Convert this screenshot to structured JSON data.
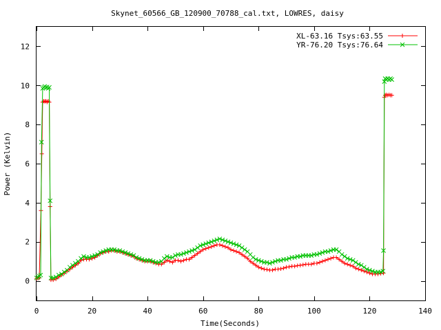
{
  "chart_data": {
    "type": "line",
    "title": "Skynet_60566_GB_120900_70788_cal.txt, LOWRES, daisy",
    "xlabel": "Time(Seconds)",
    "ylabel": "Power (Kelvin)",
    "xlim": [
      0,
      140
    ],
    "ylim": [
      -1,
      13
    ],
    "xticks": [
      0,
      20,
      40,
      60,
      80,
      100,
      120,
      140
    ],
    "yticks": [
      0,
      2,
      4,
      6,
      8,
      10,
      12
    ],
    "grid": false,
    "legend_position": "top-right",
    "series": [
      {
        "name": "XL-63.16 Tsys:63.55",
        "color": "#ff0000",
        "marker": "plus",
        "points": [
          [
            0,
            0.12
          ],
          [
            0.5,
            0.14
          ],
          [
            1,
            0.15
          ],
          [
            1.6,
            3.6
          ],
          [
            1.9,
            6.5
          ],
          [
            2.2,
            9.15
          ],
          [
            2.6,
            9.2
          ],
          [
            3,
            9.18
          ],
          [
            3.4,
            9.2
          ],
          [
            3.8,
            9.15
          ],
          [
            4.2,
            9.2
          ],
          [
            4.6,
            9.15
          ],
          [
            4.9,
            3.8
          ],
          [
            5.2,
            0.05
          ],
          [
            6,
            0.05
          ],
          [
            7,
            0.1
          ],
          [
            8,
            0.2
          ],
          [
            9,
            0.3
          ],
          [
            10,
            0.4
          ],
          [
            11,
            0.5
          ],
          [
            12,
            0.6
          ],
          [
            13,
            0.7
          ],
          [
            14,
            0.8
          ],
          [
            15,
            0.9
          ],
          [
            16,
            1.05
          ],
          [
            17,
            1.1
          ],
          [
            18,
            1.1
          ],
          [
            19,
            1.1
          ],
          [
            20,
            1.15
          ],
          [
            21,
            1.2
          ],
          [
            22,
            1.3
          ],
          [
            23,
            1.4
          ],
          [
            24,
            1.45
          ],
          [
            25,
            1.5
          ],
          [
            26,
            1.5
          ],
          [
            27,
            1.55
          ],
          [
            28,
            1.55
          ],
          [
            29,
            1.5
          ],
          [
            30,
            1.5
          ],
          [
            31,
            1.45
          ],
          [
            32,
            1.4
          ],
          [
            33,
            1.35
          ],
          [
            34,
            1.3
          ],
          [
            35,
            1.25
          ],
          [
            36,
            1.15
          ],
          [
            37,
            1.1
          ],
          [
            38,
            1.05
          ],
          [
            39,
            1.0
          ],
          [
            40,
            1.0
          ],
          [
            41,
            1.0
          ],
          [
            42,
            0.95
          ],
          [
            43,
            0.9
          ],
          [
            44,
            0.85
          ],
          [
            45,
            0.85
          ],
          [
            46,
            0.95
          ],
          [
            47,
            1.05
          ],
          [
            48,
            1.0
          ],
          [
            49,
            0.95
          ],
          [
            50,
            1.05
          ],
          [
            51,
            1.05
          ],
          [
            52,
            1.0
          ],
          [
            53,
            1.05
          ],
          [
            54,
            1.1
          ],
          [
            55,
            1.1
          ],
          [
            56,
            1.2
          ],
          [
            57,
            1.3
          ],
          [
            58,
            1.4
          ],
          [
            59,
            1.5
          ],
          [
            60,
            1.6
          ],
          [
            61,
            1.65
          ],
          [
            62,
            1.7
          ],
          [
            63,
            1.75
          ],
          [
            64,
            1.8
          ],
          [
            65,
            1.85
          ],
          [
            66,
            1.85
          ],
          [
            67,
            1.8
          ],
          [
            68,
            1.75
          ],
          [
            69,
            1.7
          ],
          [
            70,
            1.6
          ],
          [
            71,
            1.55
          ],
          [
            72,
            1.5
          ],
          [
            73,
            1.45
          ],
          [
            74,
            1.35
          ],
          [
            75,
            1.25
          ],
          [
            76,
            1.15
          ],
          [
            77,
            1.0
          ],
          [
            78,
            0.9
          ],
          [
            79,
            0.8
          ],
          [
            80,
            0.7
          ],
          [
            81,
            0.65
          ],
          [
            82,
            0.6
          ],
          [
            83,
            0.58
          ],
          [
            84,
            0.55
          ],
          [
            85,
            0.55
          ],
          [
            86,
            0.6
          ],
          [
            87,
            0.6
          ],
          [
            88,
            0.62
          ],
          [
            89,
            0.65
          ],
          [
            90,
            0.7
          ],
          [
            91,
            0.72
          ],
          [
            92,
            0.75
          ],
          [
            93,
            0.75
          ],
          [
            94,
            0.78
          ],
          [
            95,
            0.8
          ],
          [
            96,
            0.82
          ],
          [
            97,
            0.85
          ],
          [
            98,
            0.85
          ],
          [
            99,
            0.85
          ],
          [
            100,
            0.9
          ],
          [
            101,
            0.9
          ],
          [
            102,
            0.95
          ],
          [
            103,
            1.0
          ],
          [
            104,
            1.05
          ],
          [
            105,
            1.1
          ],
          [
            106,
            1.15
          ],
          [
            107,
            1.2
          ],
          [
            108,
            1.2
          ],
          [
            109,
            1.1
          ],
          [
            110,
            1.0
          ],
          [
            111,
            0.9
          ],
          [
            112,
            0.85
          ],
          [
            113,
            0.8
          ],
          [
            114,
            0.75
          ],
          [
            115,
            0.65
          ],
          [
            116,
            0.6
          ],
          [
            117,
            0.55
          ],
          [
            118,
            0.5
          ],
          [
            119,
            0.45
          ],
          [
            120,
            0.4
          ],
          [
            121,
            0.35
          ],
          [
            122,
            0.35
          ],
          [
            123,
            0.35
          ],
          [
            124,
            0.38
          ],
          [
            125,
            0.4
          ],
          [
            125.3,
            9.4
          ],
          [
            125.6,
            9.5
          ],
          [
            126,
            9.52
          ],
          [
            126.5,
            9.5
          ],
          [
            127,
            9.52
          ],
          [
            127.5,
            9.5
          ],
          [
            128,
            9.5
          ]
        ]
      },
      {
        "name": "YR-76.20 Tsys:76.64",
        "color": "#00c000",
        "marker": "cross",
        "points": [
          [
            0,
            0.15
          ],
          [
            0.5,
            0.2
          ],
          [
            1,
            0.25
          ],
          [
            1.5,
            0.3
          ],
          [
            1.8,
            7.1
          ],
          [
            2.2,
            9.85
          ],
          [
            2.6,
            9.9
          ],
          [
            3,
            9.95
          ],
          [
            3.4,
            9.88
          ],
          [
            3.8,
            9.92
          ],
          [
            4.2,
            9.85
          ],
          [
            4.6,
            9.9
          ],
          [
            4.9,
            4.1
          ],
          [
            5.2,
            0.15
          ],
          [
            6,
            0.15
          ],
          [
            7,
            0.2
          ],
          [
            8,
            0.3
          ],
          [
            9,
            0.35
          ],
          [
            10,
            0.45
          ],
          [
            11,
            0.55
          ],
          [
            12,
            0.7
          ],
          [
            13,
            0.8
          ],
          [
            14,
            0.9
          ],
          [
            15,
            1.0
          ],
          [
            16,
            1.15
          ],
          [
            17,
            1.25
          ],
          [
            18,
            1.2
          ],
          [
            19,
            1.2
          ],
          [
            20,
            1.25
          ],
          [
            21,
            1.3
          ],
          [
            22,
            1.35
          ],
          [
            23,
            1.45
          ],
          [
            24,
            1.5
          ],
          [
            25,
            1.55
          ],
          [
            26,
            1.6
          ],
          [
            27,
            1.6
          ],
          [
            28,
            1.6
          ],
          [
            29,
            1.55
          ],
          [
            30,
            1.55
          ],
          [
            31,
            1.5
          ],
          [
            32,
            1.45
          ],
          [
            33,
            1.4
          ],
          [
            34,
            1.35
          ],
          [
            35,
            1.3
          ],
          [
            36,
            1.2
          ],
          [
            37,
            1.15
          ],
          [
            38,
            1.1
          ],
          [
            39,
            1.05
          ],
          [
            40,
            1.05
          ],
          [
            41,
            1.05
          ],
          [
            42,
            1.0
          ],
          [
            43,
            0.95
          ],
          [
            44,
            0.95
          ],
          [
            45,
            1.0
          ],
          [
            46,
            1.15
          ],
          [
            47,
            1.25
          ],
          [
            48,
            1.2
          ],
          [
            49,
            1.2
          ],
          [
            50,
            1.3
          ],
          [
            51,
            1.35
          ],
          [
            52,
            1.35
          ],
          [
            53,
            1.4
          ],
          [
            54,
            1.45
          ],
          [
            55,
            1.5
          ],
          [
            56,
            1.55
          ],
          [
            57,
            1.6
          ],
          [
            58,
            1.7
          ],
          [
            59,
            1.8
          ],
          [
            60,
            1.85
          ],
          [
            61,
            1.9
          ],
          [
            62,
            1.95
          ],
          [
            63,
            2.0
          ],
          [
            64,
            2.05
          ],
          [
            65,
            2.1
          ],
          [
            66,
            2.15
          ],
          [
            67,
            2.1
          ],
          [
            68,
            2.05
          ],
          [
            69,
            2.0
          ],
          [
            70,
            1.95
          ],
          [
            71,
            1.9
          ],
          [
            72,
            1.85
          ],
          [
            73,
            1.8
          ],
          [
            74,
            1.7
          ],
          [
            75,
            1.6
          ],
          [
            76,
            1.5
          ],
          [
            77,
            1.35
          ],
          [
            78,
            1.2
          ],
          [
            79,
            1.1
          ],
          [
            80,
            1.05
          ],
          [
            81,
            1.0
          ],
          [
            82,
            0.95
          ],
          [
            83,
            0.95
          ],
          [
            84,
            0.9
          ],
          [
            85,
            0.95
          ],
          [
            86,
            1.0
          ],
          [
            87,
            1.05
          ],
          [
            88,
            1.05
          ],
          [
            89,
            1.1
          ],
          [
            90,
            1.1
          ],
          [
            91,
            1.15
          ],
          [
            92,
            1.2
          ],
          [
            93,
            1.2
          ],
          [
            94,
            1.25
          ],
          [
            95,
            1.25
          ],
          [
            96,
            1.3
          ],
          [
            97,
            1.3
          ],
          [
            98,
            1.3
          ],
          [
            99,
            1.3
          ],
          [
            100,
            1.35
          ],
          [
            101,
            1.35
          ],
          [
            102,
            1.4
          ],
          [
            103,
            1.45
          ],
          [
            104,
            1.5
          ],
          [
            105,
            1.5
          ],
          [
            106,
            1.55
          ],
          [
            107,
            1.6
          ],
          [
            108,
            1.6
          ],
          [
            109,
            1.5
          ],
          [
            110,
            1.35
          ],
          [
            111,
            1.25
          ],
          [
            112,
            1.15
          ],
          [
            113,
            1.1
          ],
          [
            114,
            1.05
          ],
          [
            115,
            0.95
          ],
          [
            116,
            0.85
          ],
          [
            117,
            0.8
          ],
          [
            118,
            0.7
          ],
          [
            119,
            0.6
          ],
          [
            120,
            0.55
          ],
          [
            121,
            0.5
          ],
          [
            122,
            0.45
          ],
          [
            123,
            0.45
          ],
          [
            124,
            0.45
          ],
          [
            124.8,
            0.5
          ],
          [
            125,
            1.55
          ],
          [
            125.3,
            10.2
          ],
          [
            125.6,
            10.35
          ],
          [
            126,
            10.3
          ],
          [
            126.5,
            10.35
          ],
          [
            127,
            10.3
          ],
          [
            127.5,
            10.35
          ],
          [
            128,
            10.3
          ]
        ]
      }
    ]
  }
}
